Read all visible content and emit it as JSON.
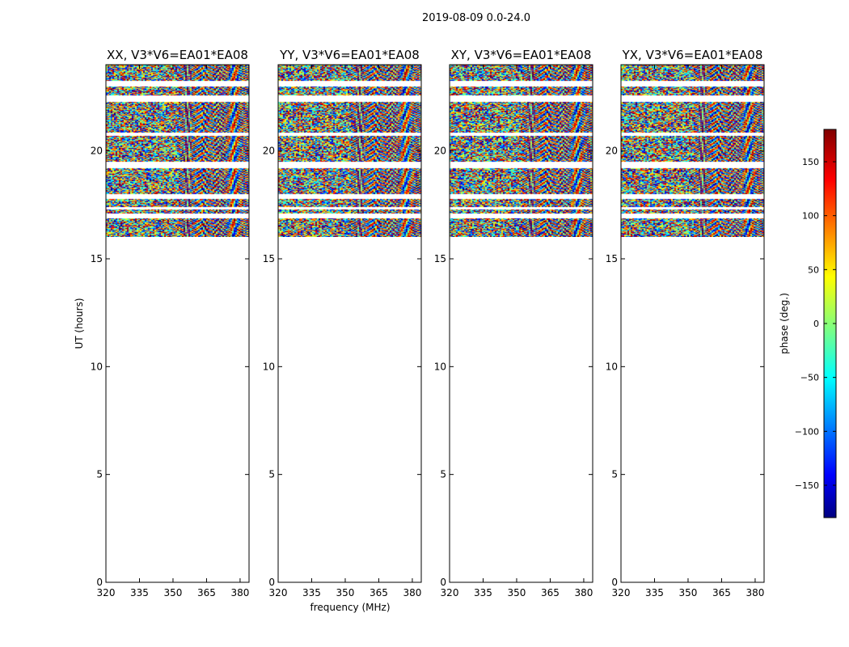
{
  "figure_title": "2019-08-09 0.0-24.0",
  "chart_data": {
    "type": "heatmap",
    "title": "2019-08-09 0.0-24.0",
    "xlabel": "frequency (MHz)",
    "ylabel": "UT (hours)",
    "xlim": [
      320,
      384
    ],
    "ylim": [
      0,
      24
    ],
    "x_ticks": [
      320,
      335,
      350,
      365,
      380
    ],
    "y_ticks": [
      0,
      5,
      10,
      15,
      20
    ],
    "data_time_range_hours": [
      16.0,
      24.0
    ],
    "blank_time_bands_hours": [
      [
        16.9,
        17.1
      ],
      [
        17.3,
        17.4
      ],
      [
        17.8,
        18.0
      ],
      [
        19.2,
        19.5
      ],
      [
        20.7,
        20.85
      ],
      [
        22.3,
        22.6
      ],
      [
        23.0,
        23.25
      ]
    ],
    "panels": [
      {
        "title": "XX, V3*V6=EA01*EA08",
        "polarization": "XX"
      },
      {
        "title": "YY, V3*V6=EA01*EA08",
        "polarization": "YY"
      },
      {
        "title": "XY, V3*V6=EA01*EA08",
        "polarization": "XY"
      },
      {
        "title": "YX, V3*V6=EA01*EA08",
        "polarization": "YX"
      }
    ],
    "colorbar": {
      "label": "phase (deg.)",
      "range": [
        -180,
        180
      ],
      "ticks": [
        -150,
        -100,
        -50,
        0,
        50,
        100,
        150
      ],
      "tick_labels": [
        "−150",
        "−100",
        "−50",
        "0",
        "50",
        "100",
        "150"
      ],
      "colormap": "jet",
      "colors": [
        "#000080",
        "#0000ff",
        "#00ffff",
        "#ffff00",
        "#ff0000",
        "#800000"
      ]
    }
  }
}
